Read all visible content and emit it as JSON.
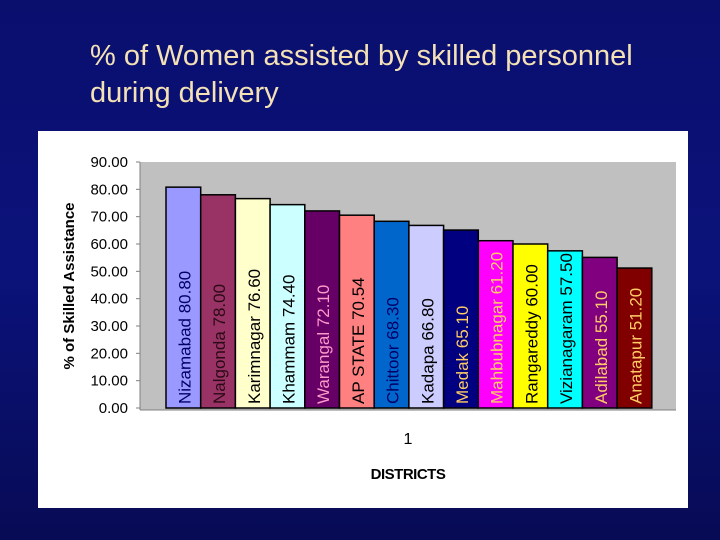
{
  "slide": {
    "title": "% of Women assisted by skilled personnel during delivery"
  },
  "chart_data": {
    "type": "bar",
    "title": "",
    "xlabel": "DISTRICTS",
    "ylabel": "% of Skilled Assistance",
    "ylim": [
      0,
      90
    ],
    "yticks": [
      "0.00",
      "10.00",
      "20.00",
      "30.00",
      "40.00",
      "50.00",
      "60.00",
      "70.00",
      "80.00",
      "90.00"
    ],
    "xtick": "1",
    "grid": false,
    "plot_background": "#c0c0c0",
    "series": [
      {
        "label": "Nizamabad 80.80",
        "value": 80.8,
        "color": "#9999ff",
        "label_color": "#000066"
      },
      {
        "label": "Nalgonda 78.00",
        "value": 78.0,
        "color": "#993366",
        "label_color": "#2a0a14"
      },
      {
        "label": "Karimnagar 76.60",
        "value": 76.6,
        "color": "#ffffcc",
        "label_color": "#000000"
      },
      {
        "label": "Khammam 74.40",
        "value": 74.4,
        "color": "#ccffff",
        "label_color": "#000000"
      },
      {
        "label": "Warangal 72.10",
        "value": 72.1,
        "color": "#660066",
        "label_color": "#ff99cc"
      },
      {
        "label": "AP STATE 70.54",
        "value": 70.54,
        "color": "#ff8080",
        "label_color": "#000000"
      },
      {
        "label": "Chittoor 68.30",
        "value": 68.3,
        "color": "#0066cc",
        "label_color": "#000066"
      },
      {
        "label": "Kadapa 66.80",
        "value": 66.8,
        "color": "#ccccff",
        "label_color": "#000000"
      },
      {
        "label": "Medak 65.10",
        "value": 65.1,
        "color": "#000080",
        "label_color": "#ffcc66"
      },
      {
        "label": "Mahbubnagar 61.20",
        "value": 61.2,
        "color": "#ff00ff",
        "label_color": "#ffcc66"
      },
      {
        "label": "Rangareddy 60.00",
        "value": 60.0,
        "color": "#ffff00",
        "label_color": "#000000"
      },
      {
        "label": "Vizianagaram 57.50",
        "value": 57.5,
        "color": "#00ffff",
        "label_color": "#000000"
      },
      {
        "label": "Adilabad 55.10",
        "value": 55.1,
        "color": "#800080",
        "label_color": "#ffcc66"
      },
      {
        "label": "Anatapur 51.20",
        "value": 51.2,
        "color": "#800000",
        "label_color": "#ffcc66"
      }
    ]
  }
}
